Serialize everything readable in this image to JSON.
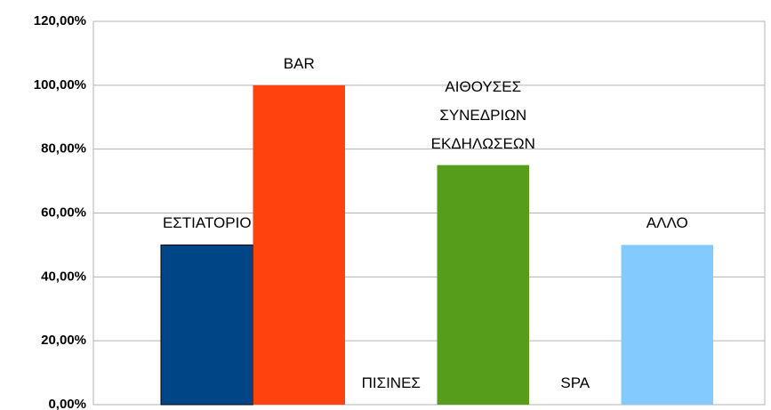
{
  "chart_data": {
    "type": "bar",
    "series": [
      {
        "name": "ΕΣΤΙΑΤΟΡΙΟ",
        "color": "#004586",
        "values": [
          50
        ]
      },
      {
        "name": "BAR",
        "color": "#ff420e",
        "values": [
          100
        ]
      },
      {
        "name": "ΠΙΣΙΝΕΣ",
        "color": "#ffd320",
        "values": [
          0
        ]
      },
      {
        "name": "ΑΙΘΟΥΣΕΣ ΣΥΝΕΔΡΙΩΝ ΕΚΔΗΛΩΣΕΩΝ",
        "color": "#579d1c",
        "values": [
          75
        ]
      },
      {
        "name": "SPA",
        "color": "#7e0021",
        "values": [
          0
        ]
      },
      {
        "name": "ΑΛΛΟ",
        "color": "#83caff",
        "values": [
          50
        ]
      }
    ],
    "ylim": [
      0,
      120
    ],
    "yticks": [
      {
        "value": 0,
        "label": "0,00%"
      },
      {
        "value": 20,
        "label": "20,00%"
      },
      {
        "value": 40,
        "label": "40,00%"
      },
      {
        "value": 60,
        "label": "60,00%"
      },
      {
        "value": 80,
        "label": "80,00%"
      },
      {
        "value": 100,
        "label": "100,00%"
      },
      {
        "value": 120,
        "label": "120,00%"
      }
    ],
    "grid": true
  }
}
